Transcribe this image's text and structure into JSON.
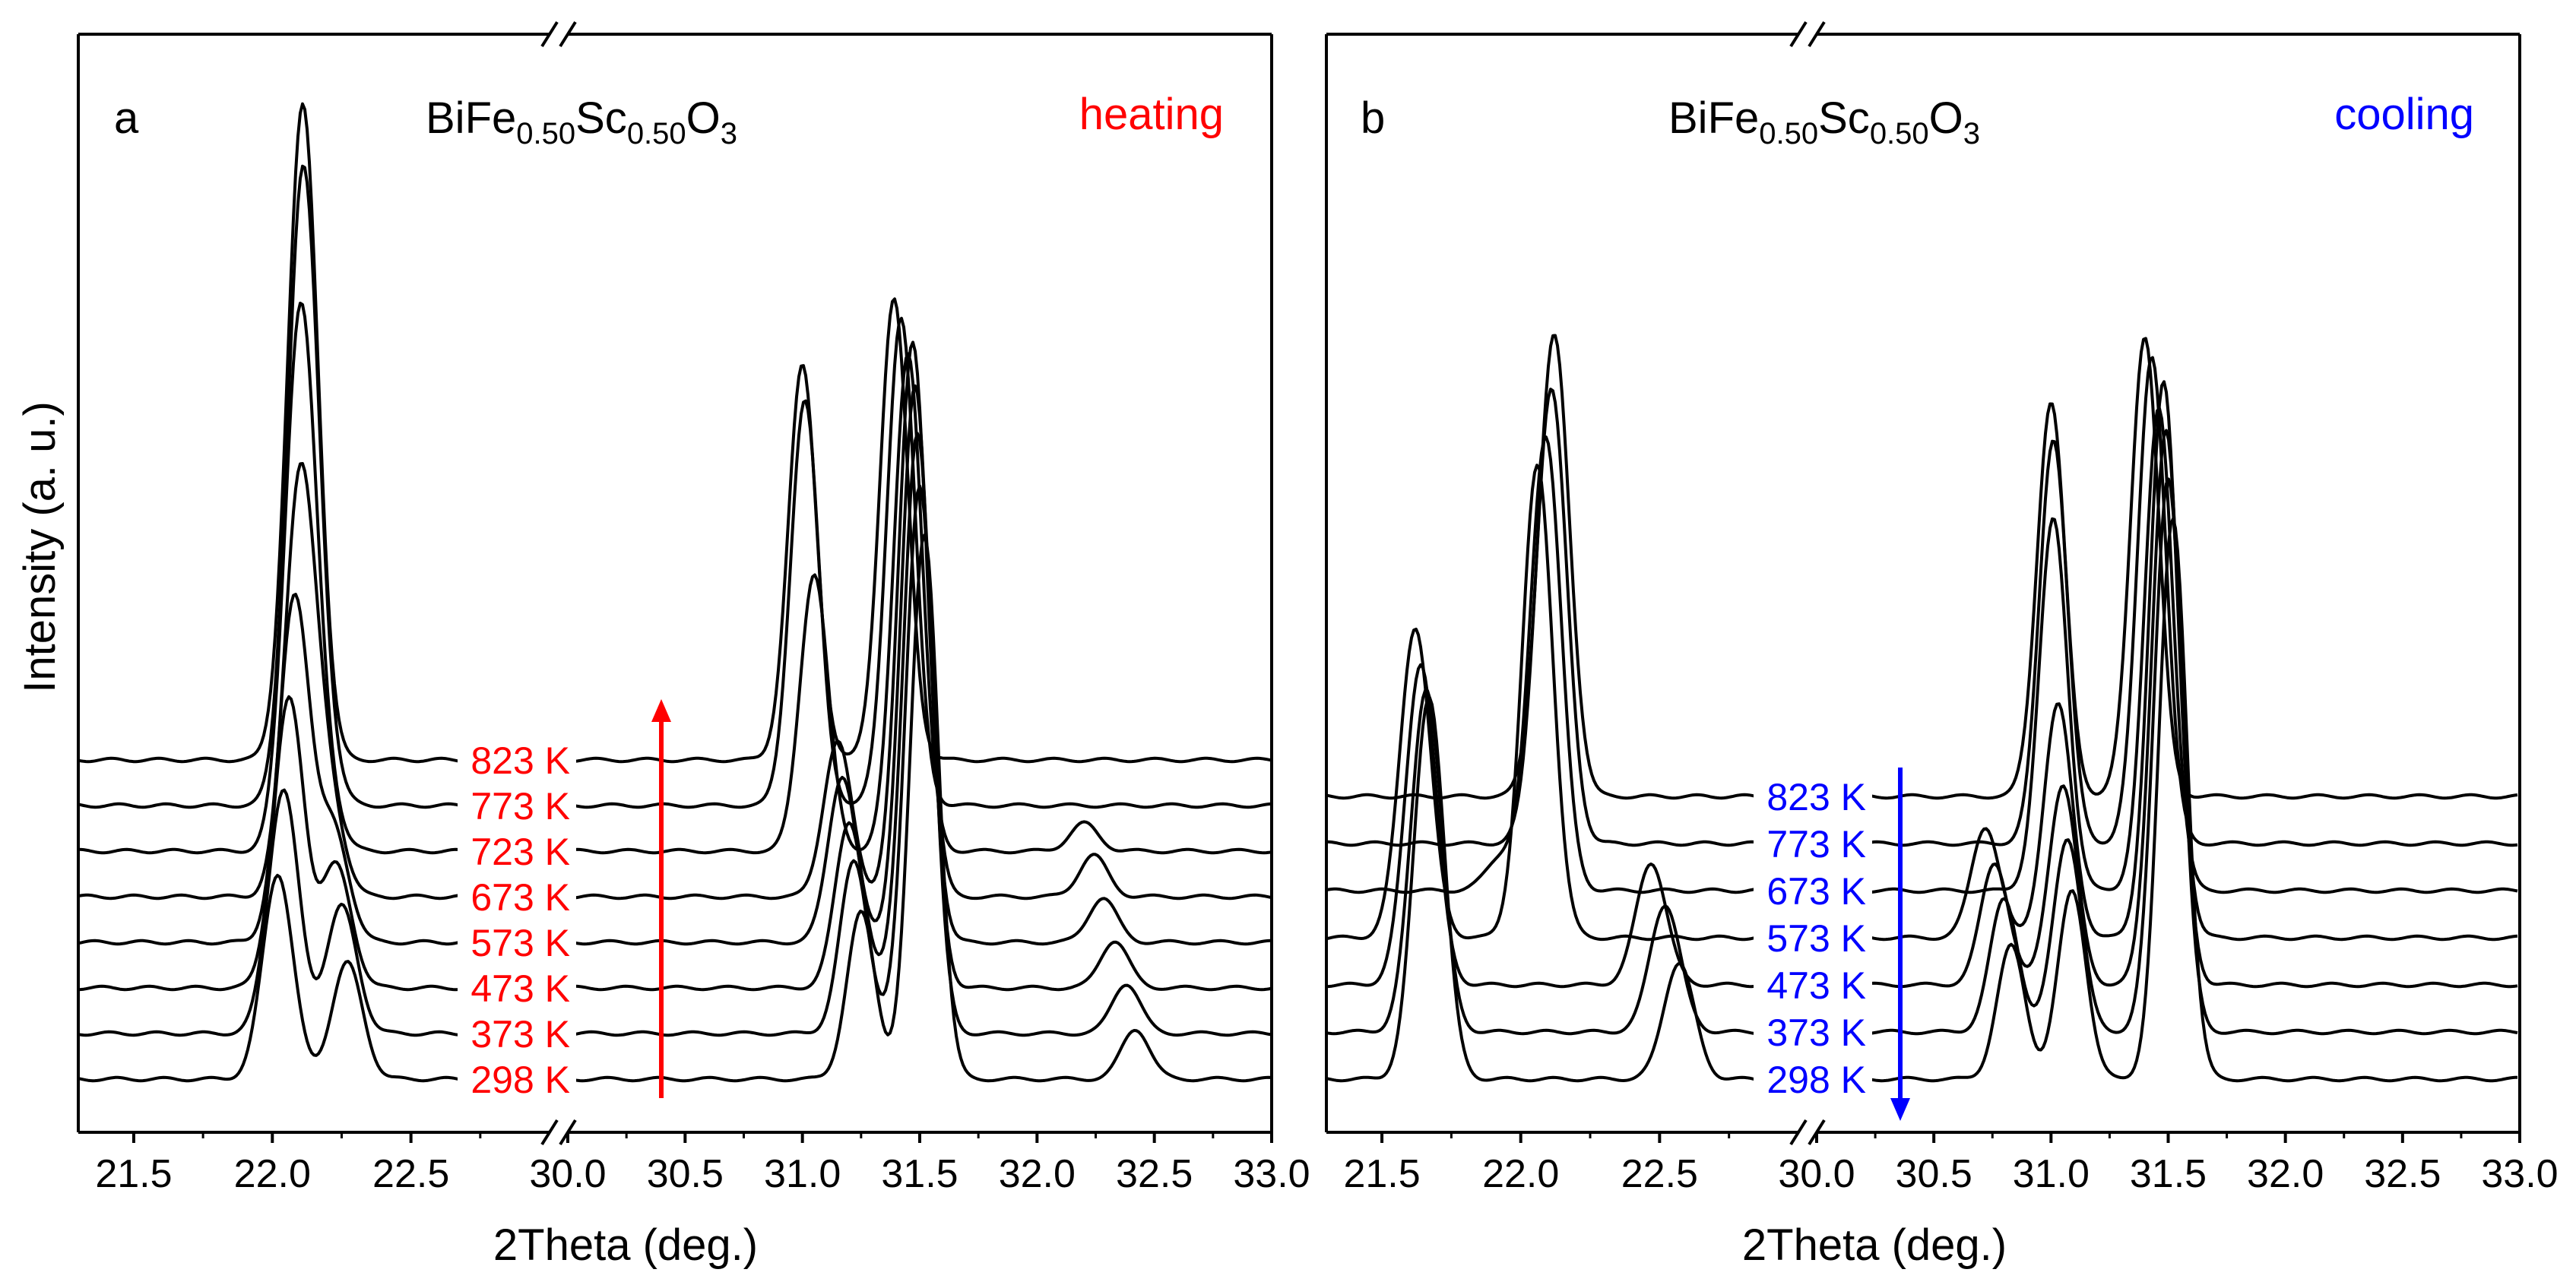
{
  "chart_data": {
    "type": "line",
    "ylabel": "Intensity (a. u.)",
    "y_units": "arbitrary",
    "shared_x_ticks": [
      "21.5",
      "22.0",
      "22.5",
      "30.0",
      "30.5",
      "31.0",
      "31.5",
      "32.0",
      "32.5",
      "33.0"
    ],
    "panels": [
      {
        "id": "a",
        "panel_label": "a",
        "title_base": "BiFe",
        "title_sub1": "0.50",
        "title_mid": "Sc",
        "title_sub2": "0.50",
        "title_o": "O",
        "title_sub3": "3",
        "mode": "heating",
        "mode_color": "#ff0000",
        "arrow_direction": "up",
        "xlabel": "2Theta (deg.)",
        "x_segments": [
          {
            "range": [
              21.3,
              23.0
            ],
            "ticks": [
              21.5,
              22.0,
              22.5
            ]
          },
          {
            "range": [
              30.0,
              33.0
            ],
            "ticks": [
              30.0,
              30.5,
              31.0,
              31.5,
              32.0,
              32.5,
              33.0
            ]
          }
        ],
        "axis_break": "x between 23.0 and 30.0",
        "series": [
          {
            "name": "298 K",
            "offset": 0,
            "low": [
              [
                22.02,
                370
              ],
              [
                22.27,
                210
              ]
            ],
            "high": [
              [
                31.25,
                300
              ],
              [
                31.52,
                980
              ],
              [
                32.42,
                90
              ]
            ]
          },
          {
            "name": "373 K",
            "offset": 60,
            "low": [
              [
                22.04,
                440
              ],
              [
                22.25,
                230
              ]
            ],
            "high": [
              [
                31.22,
                310
              ],
              [
                31.5,
                990
              ],
              [
                32.38,
                90
              ]
            ]
          },
          {
            "name": "473 K",
            "offset": 120,
            "low": [
              [
                22.06,
                520
              ],
              [
                22.23,
                220
              ]
            ],
            "high": [
              [
                31.2,
                300
              ],
              [
                31.49,
                1000
              ],
              [
                32.33,
                85
              ]
            ]
          },
          {
            "name": "573 K",
            "offset": 180,
            "low": [
              [
                22.08,
                620
              ],
              [
                22.22,
                200
              ]
            ],
            "high": [
              [
                31.17,
                300
              ],
              [
                31.48,
                1000
              ],
              [
                32.28,
                80
              ]
            ]
          },
          {
            "name": "673 K",
            "offset": 240,
            "low": [
              [
                22.1,
                750
              ],
              [
                22.2,
                170
              ]
            ],
            "high": [
              [
                31.15,
                280
              ],
              [
                31.47,
                1000
              ],
              [
                32.24,
                75
              ]
            ]
          },
          {
            "name": "723 K",
            "offset": 300,
            "low": [
              [
                22.1,
                950
              ],
              [
                22.18,
                110
              ]
            ],
            "high": [
              [
                31.05,
                500
              ],
              [
                31.45,
                900
              ],
              [
                32.2,
                50
              ]
            ]
          },
          {
            "name": "773 K",
            "offset": 360,
            "low": [
              [
                22.11,
                1120
              ],
              [
                22.18,
                70
              ]
            ],
            "high": [
              [
                31.01,
                730
              ],
              [
                31.42,
                880
              ]
            ]
          },
          {
            "name": "823 K",
            "offset": 420,
            "low": [
              [
                22.11,
                1180
              ]
            ],
            "high": [
              [
                31.0,
                710
              ],
              [
                31.39,
                830
              ]
            ]
          }
        ]
      },
      {
        "id": "b",
        "panel_label": "b",
        "title_base": "BiFe",
        "title_sub1": "0.50",
        "title_mid": "Sc",
        "title_sub2": "0.50",
        "title_o": "O",
        "title_sub3": "3",
        "mode": "cooling",
        "mode_color": "#0000ff",
        "arrow_direction": "down",
        "xlabel": "2Theta (deg.)",
        "x_segments": [
          {
            "range": [
              21.3,
              23.0
            ],
            "ticks": [
              21.5,
              22.0,
              22.5
            ]
          },
          {
            "range": [
              30.0,
              33.0
            ],
            "ticks": [
              30.0,
              30.5,
              31.0,
              31.5,
              32.0,
              32.5,
              33.0
            ]
          }
        ],
        "axis_break": "x between 23.0 and 30.0",
        "series": [
          {
            "name": "298 K",
            "offset": 0,
            "low": [
              [
                21.67,
                690
              ],
              [
                22.57,
                210
              ]
            ],
            "high": [
              [
                30.83,
                240
              ],
              [
                31.09,
                340
              ],
              [
                31.52,
                1010
              ]
            ]
          },
          {
            "name": "373 K",
            "offset": 60,
            "low": [
              [
                21.66,
                620
              ],
              [
                22.52,
                230
              ]
            ],
            "high": [
              [
                30.8,
                240
              ],
              [
                31.07,
                350
              ],
              [
                31.5,
                1000
              ]
            ]
          },
          {
            "name": "473 K",
            "offset": 120,
            "low": [
              [
                21.64,
                580
              ],
              [
                22.47,
                220
              ]
            ],
            "high": [
              [
                30.76,
                220
              ],
              [
                31.05,
                360
              ],
              [
                31.49,
                1000
              ]
            ]
          },
          {
            "name": "573 K",
            "offset": 180,
            "low": [
              [
                21.62,
                560
              ],
              [
                22.06,
                850
              ]
            ],
            "high": [
              [
                30.72,
                200
              ],
              [
                31.03,
                420
              ],
              [
                31.48,
                1000
              ]
            ]
          },
          {
            "name": "673 K",
            "offset": 240,
            "low": [
              [
                21.93,
                60
              ],
              [
                22.09,
                820
              ]
            ],
            "high": [
              [
                31.01,
                670
              ],
              [
                31.46,
                870
              ]
            ]
          },
          {
            "name": "773 K",
            "offset": 300,
            "low": [
              [
                22.11,
                820
              ]
            ],
            "high": [
              [
                31.01,
                730
              ],
              [
                31.43,
                880
              ]
            ]
          },
          {
            "name": "823 K",
            "offset": 360,
            "low": [
              [
                22.12,
                830
              ]
            ],
            "high": [
              [
                31.0,
                710
              ],
              [
                31.4,
                830
              ]
            ]
          }
        ]
      }
    ]
  }
}
